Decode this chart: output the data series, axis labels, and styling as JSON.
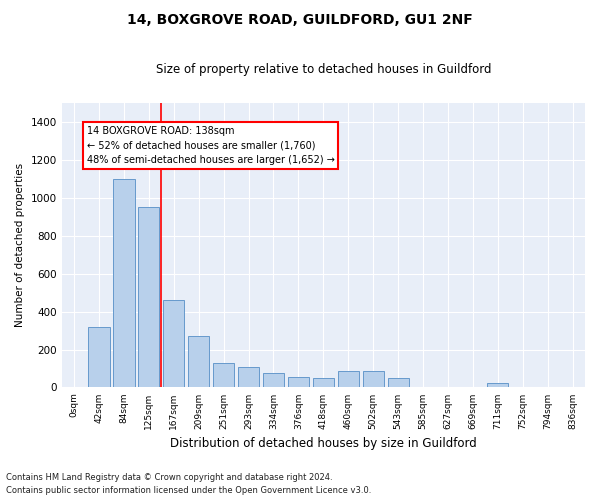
{
  "title": "14, BOXGROVE ROAD, GUILDFORD, GU1 2NF",
  "subtitle": "Size of property relative to detached houses in Guildford",
  "xlabel": "Distribution of detached houses by size in Guildford",
  "ylabel": "Number of detached properties",
  "bar_color": "#b8d0eb",
  "bar_edge_color": "#6699cc",
  "categories": [
    "0sqm",
    "42sqm",
    "84sqm",
    "125sqm",
    "167sqm",
    "209sqm",
    "251sqm",
    "293sqm",
    "334sqm",
    "376sqm",
    "418sqm",
    "460sqm",
    "502sqm",
    "543sqm",
    "585sqm",
    "627sqm",
    "669sqm",
    "711sqm",
    "752sqm",
    "794sqm",
    "836sqm"
  ],
  "values": [
    2,
    320,
    1100,
    950,
    460,
    270,
    130,
    110,
    75,
    55,
    50,
    85,
    85,
    50,
    2,
    2,
    2,
    25,
    2,
    2,
    2
  ],
  "ylim": [
    0,
    1500
  ],
  "yticks": [
    0,
    200,
    400,
    600,
    800,
    1000,
    1200,
    1400
  ],
  "red_line_x": 3.5,
  "annotation_text": "14 BOXGROVE ROAD: 138sqm\n← 52% of detached houses are smaller (1,760)\n48% of semi-detached houses are larger (1,652) →",
  "annotation_box_color": "white",
  "annotation_box_edge": "red",
  "footer_line1": "Contains HM Land Registry data © Crown copyright and database right 2024.",
  "footer_line2": "Contains public sector information licensed under the Open Government Licence v3.0.",
  "background_color": "#e8eef8",
  "plot_background": "#e8eef8"
}
